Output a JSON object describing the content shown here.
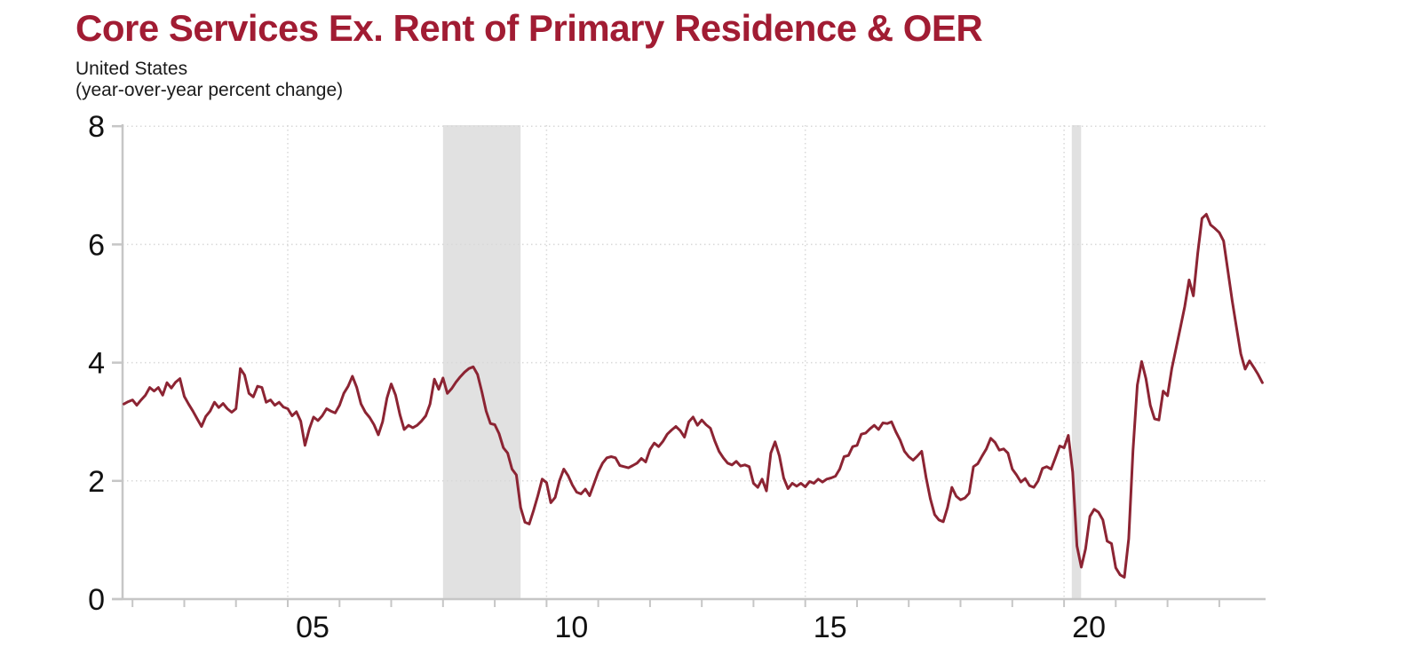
{
  "header": {
    "title": "Core Services Ex. Rent of Primary Residence & OER",
    "subtitle_line1": "United States",
    "subtitle_line2": "(year-over-year percent change)"
  },
  "colors": {
    "title": "#a11c33",
    "line": "#8c2433",
    "recession_band": "#e1e1e1",
    "gridline": "#d8d8d8",
    "axis": "#c6c6c6",
    "tick_text": "#111111"
  },
  "chart_data": {
    "type": "line",
    "title": "Core Services Ex. Rent of Primary Residence & OER",
    "region_label": "United States",
    "units_label": "(year-over-year percent change)",
    "frequency": "monthly",
    "start_year": 2001,
    "start_month": 11,
    "ylim": [
      0,
      8
    ],
    "y_ticks": [
      0,
      2,
      4,
      6,
      8
    ],
    "x_labeled_ticks": [
      {
        "year": 2005,
        "label": "05"
      },
      {
        "year": 2010,
        "label": "10"
      },
      {
        "year": 2015,
        "label": "15"
      },
      {
        "year": 2020,
        "label": "20"
      }
    ],
    "x_minor_tick_years": [
      2002,
      2003,
      2004,
      2005,
      2006,
      2007,
      2008,
      2009,
      2010,
      2011,
      2012,
      2013,
      2014,
      2015,
      2016,
      2017,
      2018,
      2019,
      2020,
      2021,
      2022,
      2023
    ],
    "grid": "dotted",
    "legend": "none",
    "recession_bands_decimal_years": [
      [
        2008.0,
        2009.5
      ],
      [
        2020.15,
        2020.33
      ]
    ],
    "values": [
      3.3,
      3.34,
      3.37,
      3.28,
      3.37,
      3.45,
      3.58,
      3.52,
      3.58,
      3.45,
      3.66,
      3.57,
      3.67,
      3.73,
      3.43,
      3.3,
      3.18,
      3.05,
      2.92,
      3.09,
      3.18,
      3.33,
      3.24,
      3.31,
      3.22,
      3.16,
      3.22,
      3.9,
      3.79,
      3.48,
      3.42,
      3.6,
      3.58,
      3.33,
      3.37,
      3.28,
      3.33,
      3.25,
      3.22,
      3.1,
      3.17,
      3.01,
      2.6,
      2.88,
      3.08,
      3.02,
      3.1,
      3.22,
      3.18,
      3.15,
      3.28,
      3.48,
      3.6,
      3.77,
      3.58,
      3.3,
      3.16,
      3.07,
      2.95,
      2.78,
      3.0,
      3.4,
      3.64,
      3.45,
      3.12,
      2.87,
      2.94,
      2.9,
      2.94,
      3.01,
      3.1,
      3.3,
      3.72,
      3.55,
      3.74,
      3.48,
      3.56,
      3.67,
      3.76,
      3.84,
      3.9,
      3.93,
      3.8,
      3.51,
      3.18,
      2.97,
      2.95,
      2.8,
      2.56,
      2.47,
      2.2,
      2.1,
      1.55,
      1.3,
      1.27,
      1.5,
      1.75,
      2.03,
      1.97,
      1.63,
      1.72,
      2.0,
      2.2,
      2.09,
      1.93,
      1.81,
      1.78,
      1.86,
      1.75,
      1.95,
      2.15,
      2.3,
      2.39,
      2.41,
      2.39,
      2.26,
      2.24,
      2.22,
      2.26,
      2.3,
      2.38,
      2.32,
      2.53,
      2.64,
      2.58,
      2.67,
      2.79,
      2.86,
      2.92,
      2.85,
      2.74,
      3.0,
      3.08,
      2.94,
      3.03,
      2.95,
      2.89,
      2.68,
      2.5,
      2.39,
      2.3,
      2.27,
      2.33,
      2.25,
      2.27,
      2.24,
      1.96,
      1.89,
      2.03,
      1.83,
      2.47,
      2.66,
      2.42,
      2.05,
      1.87,
      1.96,
      1.91,
      1.96,
      1.9,
      1.99,
      1.96,
      2.03,
      1.98,
      2.03,
      2.05,
      2.08,
      2.2,
      2.41,
      2.43,
      2.58,
      2.6,
      2.79,
      2.81,
      2.88,
      2.94,
      2.87,
      2.98,
      2.97,
      3.0,
      2.83,
      2.69,
      2.5,
      2.41,
      2.35,
      2.42,
      2.5,
      2.06,
      1.7,
      1.43,
      1.34,
      1.31,
      1.55,
      1.89,
      1.74,
      1.68,
      1.71,
      1.79,
      2.24,
      2.29,
      2.42,
      2.54,
      2.72,
      2.65,
      2.52,
      2.54,
      2.47,
      2.2,
      2.1,
      1.98,
      2.04,
      1.92,
      1.89,
      2.0,
      2.21,
      2.24,
      2.2,
      2.39,
      2.59,
      2.56,
      2.77,
      2.15,
      0.9,
      0.54,
      0.85,
      1.4,
      1.52,
      1.47,
      1.34,
      0.98,
      0.94,
      0.53,
      0.41,
      0.37,
      1.02,
      2.51,
      3.62,
      4.02,
      3.73,
      3.28,
      3.05,
      3.03,
      3.52,
      3.44,
      3.9,
      4.25,
      4.6,
      4.95,
      5.4,
      5.13,
      5.85,
      6.44,
      6.51,
      6.33,
      6.27,
      6.2,
      6.06,
      5.55,
      5.05,
      4.59,
      4.15,
      3.89,
      4.03,
      3.92,
      3.8,
      3.66
    ]
  }
}
